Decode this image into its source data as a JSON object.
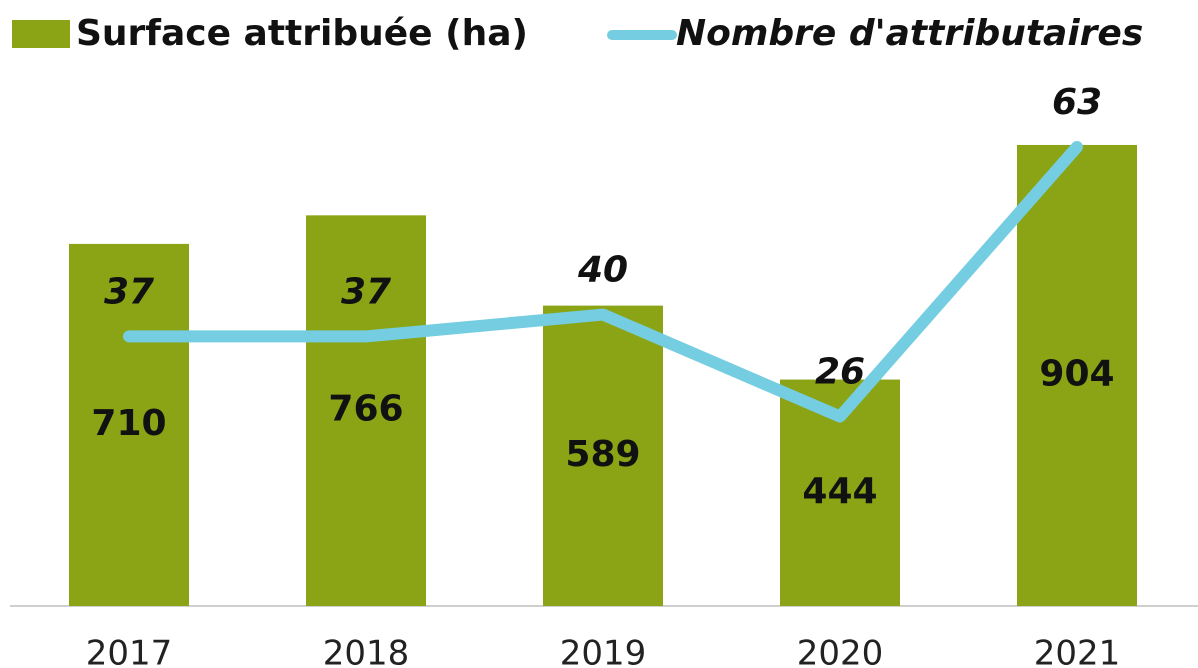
{
  "chart_data": {
    "type": "bar",
    "categories": [
      "2017",
      "2018",
      "2019",
      "2020",
      "2021"
    ],
    "series": [
      {
        "name": "Surface attribuée (ha)",
        "type": "bar",
        "color": "#8aa415",
        "values": [
          710,
          766,
          589,
          444,
          904
        ]
      },
      {
        "name": "Nombre d'attributaires",
        "type": "line",
        "axis": "y2",
        "color": "#74cde0",
        "values": [
          37,
          37,
          40,
          26,
          63
        ]
      }
    ],
    "ylim": [
      0,
      1000
    ],
    "y2lim": [
      0,
      70
    ],
    "legend": "top"
  }
}
